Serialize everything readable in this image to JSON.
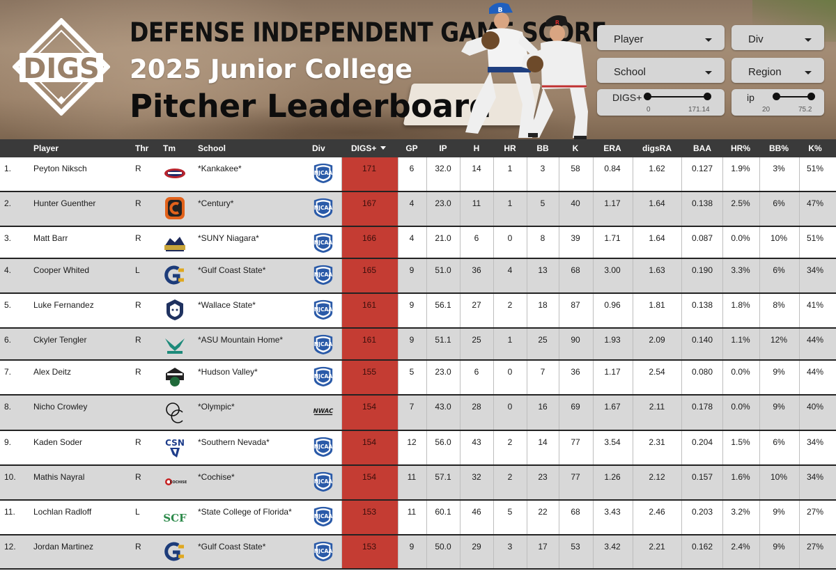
{
  "header": {
    "logo_text": "DIGS",
    "title_line1": "DEFENSE INDEPENDENT GAME SCORE",
    "title_line2": "2025 Junior College",
    "title_line3": "Pitcher Leaderboard",
    "cap_letter_1": "B",
    "cap_letter_2": "R"
  },
  "filters": {
    "player": "Player",
    "div": "Div",
    "school": "School",
    "region": "Region",
    "digs_slider": {
      "label": "DIGS+",
      "min": "0",
      "max": "171.14",
      "low": 0,
      "high": 171.14
    },
    "ip_slider": {
      "label": "ip",
      "min": "20",
      "max": "75.2",
      "low": 20,
      "high": 75.2
    }
  },
  "table": {
    "columns": {
      "player": "Player",
      "thr": "Thr",
      "tm": "Tm",
      "school": "School",
      "div": "Div",
      "digs": "DIGS+",
      "gp": "GP",
      "ip": "IP",
      "h": "H",
      "hr": "HR",
      "bb": "BB",
      "k": "K",
      "era": "ERA",
      "digsra": "digsRA",
      "baa": "BAA",
      "hrp": "HR%",
      "bbp": "BB%",
      "kp": "K%"
    },
    "rows": [
      {
        "rank": "1.",
        "player": "Peyton Niksch",
        "thr": "R",
        "team_icon": "kankakee-logo",
        "school": "*Kankakee*",
        "div_icon": "njcaa-logo",
        "digs": "171",
        "gp": "6",
        "ip": "32.0",
        "h": "14",
        "hr": "1",
        "bb": "3",
        "k": "58",
        "era": "0.84",
        "digsra": "1.62",
        "baa": "0.127",
        "hrp": "1.9%",
        "bbp": "3%",
        "kp": "51%"
      },
      {
        "rank": "2.",
        "player": "Hunter Guenther",
        "thr": "R",
        "team_icon": "century-logo",
        "school": "*Century*",
        "div_icon": "njcaa-logo",
        "digs": "167",
        "gp": "4",
        "ip": "23.0",
        "h": "11",
        "hr": "1",
        "bb": "5",
        "k": "40",
        "era": "1.17",
        "digsra": "1.64",
        "baa": "0.138",
        "hrp": "2.5%",
        "bbp": "6%",
        "kp": "47%"
      },
      {
        "rank": "3.",
        "player": "Matt Barr",
        "thr": "R",
        "team_icon": "suny-niagara-logo",
        "school": "*SUNY Niagara*",
        "div_icon": "njcaa-logo",
        "digs": "166",
        "gp": "4",
        "ip": "21.0",
        "h": "6",
        "hr": "0",
        "bb": "8",
        "k": "39",
        "era": "1.71",
        "digsra": "1.64",
        "baa": "0.087",
        "hrp": "0.0%",
        "bbp": "10%",
        "kp": "51%"
      },
      {
        "rank": "4.",
        "player": "Cooper Whited",
        "thr": "L",
        "team_icon": "gulf-coast-logo",
        "school": "*Gulf Coast State*",
        "div_icon": "njcaa-logo",
        "digs": "165",
        "gp": "9",
        "ip": "51.0",
        "h": "36",
        "hr": "4",
        "bb": "13",
        "k": "68",
        "era": "3.00",
        "digsra": "1.63",
        "baa": "0.190",
        "hrp": "3.3%",
        "bbp": "6%",
        "kp": "34%"
      },
      {
        "rank": "5.",
        "player": "Luke Fernandez",
        "thr": "R",
        "team_icon": "wallace-state-logo",
        "school": "*Wallace State*",
        "div_icon": "njcaa-logo",
        "digs": "161",
        "gp": "9",
        "ip": "56.1",
        "h": "27",
        "hr": "2",
        "bb": "18",
        "k": "87",
        "era": "0.96",
        "digsra": "1.81",
        "baa": "0.138",
        "hrp": "1.8%",
        "bbp": "8%",
        "kp": "41%"
      },
      {
        "rank": "6.",
        "player": "Ckyler Tengler",
        "thr": "R",
        "team_icon": "asu-mountain-home-logo",
        "school": "*ASU Mountain Home*",
        "div_icon": "njcaa-logo",
        "digs": "161",
        "gp": "9",
        "ip": "51.1",
        "h": "25",
        "hr": "1",
        "bb": "25",
        "k": "90",
        "era": "1.93",
        "digsra": "2.09",
        "baa": "0.140",
        "hrp": "1.1%",
        "bbp": "12%",
        "kp": "44%"
      },
      {
        "rank": "7.",
        "player": "Alex Deitz",
        "thr": "R",
        "team_icon": "hudson-valley-logo",
        "school": "*Hudson Valley*",
        "div_icon": "njcaa-logo",
        "digs": "155",
        "gp": "5",
        "ip": "23.0",
        "h": "6",
        "hr": "0",
        "bb": "7",
        "k": "36",
        "era": "1.17",
        "digsra": "2.54",
        "baa": "0.080",
        "hrp": "0.0%",
        "bbp": "9%",
        "kp": "44%"
      },
      {
        "rank": "8.",
        "player": "Nicho Crowley",
        "thr": "",
        "team_icon": "olympic-logo",
        "school": "*Olympic*",
        "div_icon": "nwac-logo",
        "digs": "154",
        "gp": "7",
        "ip": "43.0",
        "h": "28",
        "hr": "0",
        "bb": "16",
        "k": "69",
        "era": "1.67",
        "digsra": "2.11",
        "baa": "0.178",
        "hrp": "0.0%",
        "bbp": "9%",
        "kp": "40%"
      },
      {
        "rank": "9.",
        "player": "Kaden Soder",
        "thr": "R",
        "team_icon": "southern-nevada-logo",
        "school": "*Southern Nevada*",
        "div_icon": "njcaa-logo",
        "digs": "154",
        "gp": "12",
        "ip": "56.0",
        "h": "43",
        "hr": "2",
        "bb": "14",
        "k": "77",
        "era": "3.54",
        "digsra": "2.31",
        "baa": "0.204",
        "hrp": "1.5%",
        "bbp": "6%",
        "kp": "34%"
      },
      {
        "rank": "10.",
        "player": "Mathis Nayral",
        "thr": "R",
        "team_icon": "cochise-logo",
        "school": "*Cochise*",
        "div_icon": "njcaa-logo",
        "digs": "154",
        "gp": "11",
        "ip": "57.1",
        "h": "32",
        "hr": "2",
        "bb": "23",
        "k": "77",
        "era": "1.26",
        "digsra": "2.12",
        "baa": "0.157",
        "hrp": "1.6%",
        "bbp": "10%",
        "kp": "34%"
      },
      {
        "rank": "11.",
        "player": "Lochlan Radloff",
        "thr": "L",
        "team_icon": "scf-logo",
        "school": "*State College of Florida*",
        "div_icon": "njcaa-logo",
        "digs": "153",
        "gp": "11",
        "ip": "60.1",
        "h": "46",
        "hr": "5",
        "bb": "22",
        "k": "68",
        "era": "3.43",
        "digsra": "2.46",
        "baa": "0.203",
        "hrp": "3.2%",
        "bbp": "9%",
        "kp": "27%"
      },
      {
        "rank": "12.",
        "player": "Jordan Martinez",
        "thr": "R",
        "team_icon": "gulf-coast-logo",
        "school": "*Gulf Coast State*",
        "div_icon": "njcaa-logo",
        "digs": "153",
        "gp": "9",
        "ip": "50.0",
        "h": "29",
        "hr": "3",
        "bb": "17",
        "k": "53",
        "era": "3.42",
        "digsra": "2.21",
        "baa": "0.162",
        "hrp": "2.4%",
        "bbp": "9%",
        "kp": "27%"
      }
    ]
  },
  "logo_text": {
    "njcaa": "NJCAA",
    "nwac": "NWAC",
    "csn": "CSN",
    "scf": "SCF",
    "cochise": "COCHISE",
    "oc": "OC",
    "gc": "G"
  },
  "colors": {
    "header_bar": "#3a3a3a",
    "digs_column": "#c43c33",
    "row_alt": "#d8d8d8",
    "njcaa_blue": "#2a5aa8"
  }
}
